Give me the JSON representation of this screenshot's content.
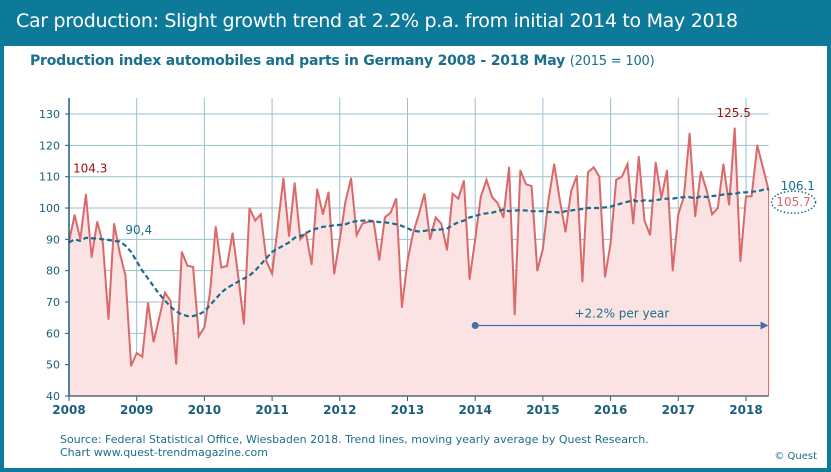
{
  "title": "Car production: Slight growth trend at 2.2% p.a. from initial 2014 to May 2018",
  "subtitle": "Production index automobiles and parts in Germany 2008 - 2018 May",
  "subtitle_base": "(2015 = 100)",
  "footer": {
    "source": "Source: Federal Statistical Office, Wiesbaden 2018. Trend lines, moving yearly average by Quest Research.",
    "chart_credit": "Chart www.quest-trendmagazine.com",
    "copyright": "© Quest"
  },
  "colors": {
    "frame": "#0e7a9a",
    "index_line": "#d9696b",
    "index_fill": "#fbe3e4",
    "trend_line": "#1a6e8c",
    "annotation_red": "#a01010",
    "grid": "#9bbfcc"
  },
  "chart_data": {
    "type": "area",
    "start": "2008-01",
    "end": "2018-05",
    "frequency": "monthly",
    "xlim": [
      2008,
      2018.42
    ],
    "ylim": [
      40,
      135
    ],
    "x_ticks": [
      "2008",
      "2009",
      "2010",
      "2011",
      "2012",
      "2013",
      "2014",
      "2015",
      "2016",
      "2017",
      "2018"
    ],
    "y_ticks": [
      40,
      50,
      60,
      70,
      80,
      90,
      100,
      110,
      120,
      130
    ],
    "grid": true,
    "series": [
      {
        "key": "index",
        "style": "solid-filled",
        "values": [
          89.2,
          97.8,
          90,
          104.3,
          84.3,
          95.6,
          89,
          64.5,
          95,
          85.6,
          78.6,
          49.6,
          53.7,
          52.5,
          69.7,
          57.3,
          65,
          73,
          70.3,
          50.2,
          86,
          81.6,
          81.2,
          59.1,
          62,
          73,
          94,
          81,
          81.5,
          92,
          78,
          63,
          100,
          96,
          98,
          83,
          79,
          94,
          109.5,
          91,
          108,
          90,
          92,
          82,
          106,
          98,
          105,
          79,
          90,
          102,
          109.5,
          91.4,
          95,
          95.6,
          95.6,
          83.4,
          97,
          98.5,
          103,
          68.3,
          83,
          92,
          98,
          104.5,
          90,
          97,
          95,
          86.6,
          104.5,
          103,
          108.7,
          77.3,
          90,
          103.6,
          109,
          103.5,
          101.5,
          97,
          113,
          66,
          112,
          107.6,
          107,
          80,
          87,
          102.6,
          114,
          102.6,
          92.4,
          105.3,
          110.3,
          76.5,
          111.4,
          113,
          110,
          78,
          88.7,
          109,
          110,
          114,
          95,
          116.4,
          96,
          91.4,
          114.5,
          103.3,
          112,
          80,
          98,
          103.6,
          123.8,
          97.3,
          111.6,
          105.8,
          98,
          100,
          114,
          101,
          125.5,
          83,
          103.7,
          103.7,
          120,
          113,
          105.7
        ]
      },
      {
        "key": "trend",
        "style": "dashed",
        "values": [
          89,
          90,
          89.5,
          90.5,
          90.4,
          90.2,
          90,
          89.8,
          89.5,
          89.3,
          88,
          86,
          83,
          80,
          77.5,
          75,
          72.5,
          70.5,
          68.5,
          67,
          66,
          65.5,
          65.5,
          66,
          67,
          69,
          71,
          73,
          74.5,
          75.5,
          76.5,
          77.5,
          78.5,
          80,
          82,
          84,
          86,
          87,
          88,
          89,
          90.5,
          91,
          92,
          93,
          93.5,
          94,
          94.2,
          94.5,
          94.6,
          94.8,
          95.5,
          95.8,
          96,
          96,
          95.8,
          95.5,
          95.4,
          95.2,
          94.8,
          94.3,
          93.5,
          92.8,
          92.5,
          92.7,
          93,
          93,
          93.2,
          93.5,
          94.5,
          95.5,
          96,
          97,
          97.5,
          98,
          98.3,
          98.5,
          99,
          99.5,
          99,
          99.2,
          99.3,
          99.2,
          99,
          99,
          99,
          98.7,
          98.8,
          98.5,
          99,
          99.2,
          99.5,
          99.7,
          100,
          100,
          100,
          100.2,
          100.5,
          101,
          101.5,
          102,
          102.5,
          102,
          102.5,
          102.3,
          102.5,
          102.8,
          103,
          103,
          103.3,
          103.5,
          103.5,
          103,
          103.8,
          103.5,
          103.8,
          104,
          104.3,
          104.5,
          104.5,
          105,
          105,
          105.2,
          105.3,
          105.8,
          106.1
        ]
      }
    ],
    "annotations": [
      {
        "key": "first",
        "text": "104.3",
        "month_index": 3,
        "value": 104.3,
        "color": "red"
      },
      {
        "key": "trend_start",
        "text": "90,4",
        "month_index": 4,
        "value": 90.4,
        "color": "teal"
      },
      {
        "key": "max",
        "text": "125.5",
        "month_index": 118,
        "value": 125.5,
        "color": "red"
      },
      {
        "key": "trend_last",
        "text": "106.1",
        "month_index": 124,
        "value": 106.1,
        "color": "teal"
      },
      {
        "key": "last",
        "text": "105.7",
        "month_index": 124,
        "value": 105.7,
        "color": "red",
        "circled": true
      }
    ],
    "trend_arrow": {
      "label": "+2.2% per year",
      "from": "2014-01",
      "to": "2018-05",
      "value": 62.5
    }
  }
}
